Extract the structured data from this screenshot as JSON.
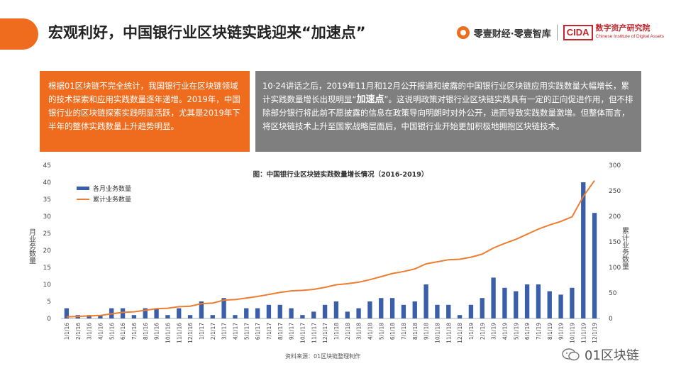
{
  "header": {
    "title": "宏观利好，中国银行业区块链实践迎来“加速点”",
    "brand_name": "零壹财经·零壹智库",
    "cida_logo": "CIDA",
    "cida_name": "数字资产研究院",
    "cida_en": "Chinese Institute of Digital Assets"
  },
  "text_left": "根据01区块链不完全统计，我国银行业在区块链领域的技术探索和应用实践数量逐年递增。2019年，中国银行业的区块链探索实践明显活跃，尤其是2019年下半年的整体实践数量上升趋势明显。",
  "text_right": {
    "part1": "10·24讲话之后，2019年11月和12月公开报道和披露的中国银行业区块链应用实践数量大幅增长，累计实践数量增长出现明显“",
    "highlight": "加速点",
    "part2": "”。这说明政策对银行业区块链实践具有一定的正向促进作用，但不排除部分银行将此前不愿披露的信息在政策导向明朗时对外公开，进而导致实践数量激增。但整体而言，将区块链技术上升至国家战略层面后，中国银行业开始更加积极地拥抱区块链技术。"
  },
  "chart_data": {
    "type": "bar+line",
    "title": "图：中国银行业区块链实践数量增长情况（2016-2019）",
    "ylabel_left": "月业务数量",
    "ylabel_right": "累计业务数量",
    "ylim_left": [
      0,
      45
    ],
    "ylim_right": [
      0,
      300
    ],
    "yticks_left": [
      "0",
      "5",
      "10",
      "15",
      "20",
      "25",
      "30",
      "35",
      "40",
      "45"
    ],
    "yticks_right": [
      "0",
      "50",
      "100",
      "150",
      "200",
      "250",
      "300"
    ],
    "categories": [
      "1/1/16",
      "2/1/16",
      "3/1/16",
      "4/1/16",
      "5/1/16",
      "6/1/16",
      "7/1/16",
      "8/1/16",
      "9/1/16",
      "10/1/16",
      "11/1/16",
      "12/1/16",
      "1/1/17",
      "2/1/17",
      "3/1/17",
      "4/1/17",
      "5/1/17",
      "6/1/17",
      "7/1/17",
      "8/1/17",
      "9/1/17",
      "10/1/17",
      "11/1/17",
      "12/1/17",
      "1/1/18",
      "2/1/18",
      "3/1/18",
      "4/1/18",
      "5/1/18",
      "6/1/18",
      "7/1/18",
      "8/1/18",
      "9/1/18",
      "10/1/18",
      "11/1/18",
      "12/1/18",
      "1/1/19",
      "2/1/19",
      "3/1/19",
      "4/1/19",
      "5/1/19",
      "6/1/19",
      "7/1/19",
      "8/1/19",
      "9/1/19",
      "10/1/19",
      "11/1/19",
      "12/1/19"
    ],
    "series": [
      {
        "name": "各月业务数量",
        "type": "bar",
        "axis": "left",
        "color": "#3a5ea8",
        "values": [
          3,
          1,
          1,
          1,
          3,
          3,
          1,
          3,
          3,
          1,
          3,
          1,
          5,
          1,
          6,
          1,
          3,
          3,
          4,
          4,
          3,
          1,
          2,
          4,
          5,
          2,
          3,
          5,
          6,
          6,
          4,
          5,
          10,
          4,
          4,
          1,
          4,
          6,
          12,
          9,
          8,
          10,
          10,
          8,
          7,
          9,
          40,
          31
        ]
      },
      {
        "name": "累计业务数量",
        "type": "line",
        "axis": "right",
        "color": "#ed7d31",
        "values": [
          3,
          4,
          5,
          6,
          9,
          12,
          13,
          16,
          19,
          20,
          23,
          24,
          29,
          30,
          36,
          37,
          40,
          43,
          47,
          51,
          54,
          55,
          57,
          61,
          66,
          68,
          71,
          76,
          82,
          88,
          92,
          97,
          107,
          111,
          115,
          116,
          120,
          126,
          138,
          147,
          155,
          165,
          175,
          183,
          190,
          199,
          239,
          270
        ]
      }
    ],
    "legend_position": "top-left"
  },
  "source": "资料来源：01区块链整理制作",
  "watermark": "01区块链"
}
